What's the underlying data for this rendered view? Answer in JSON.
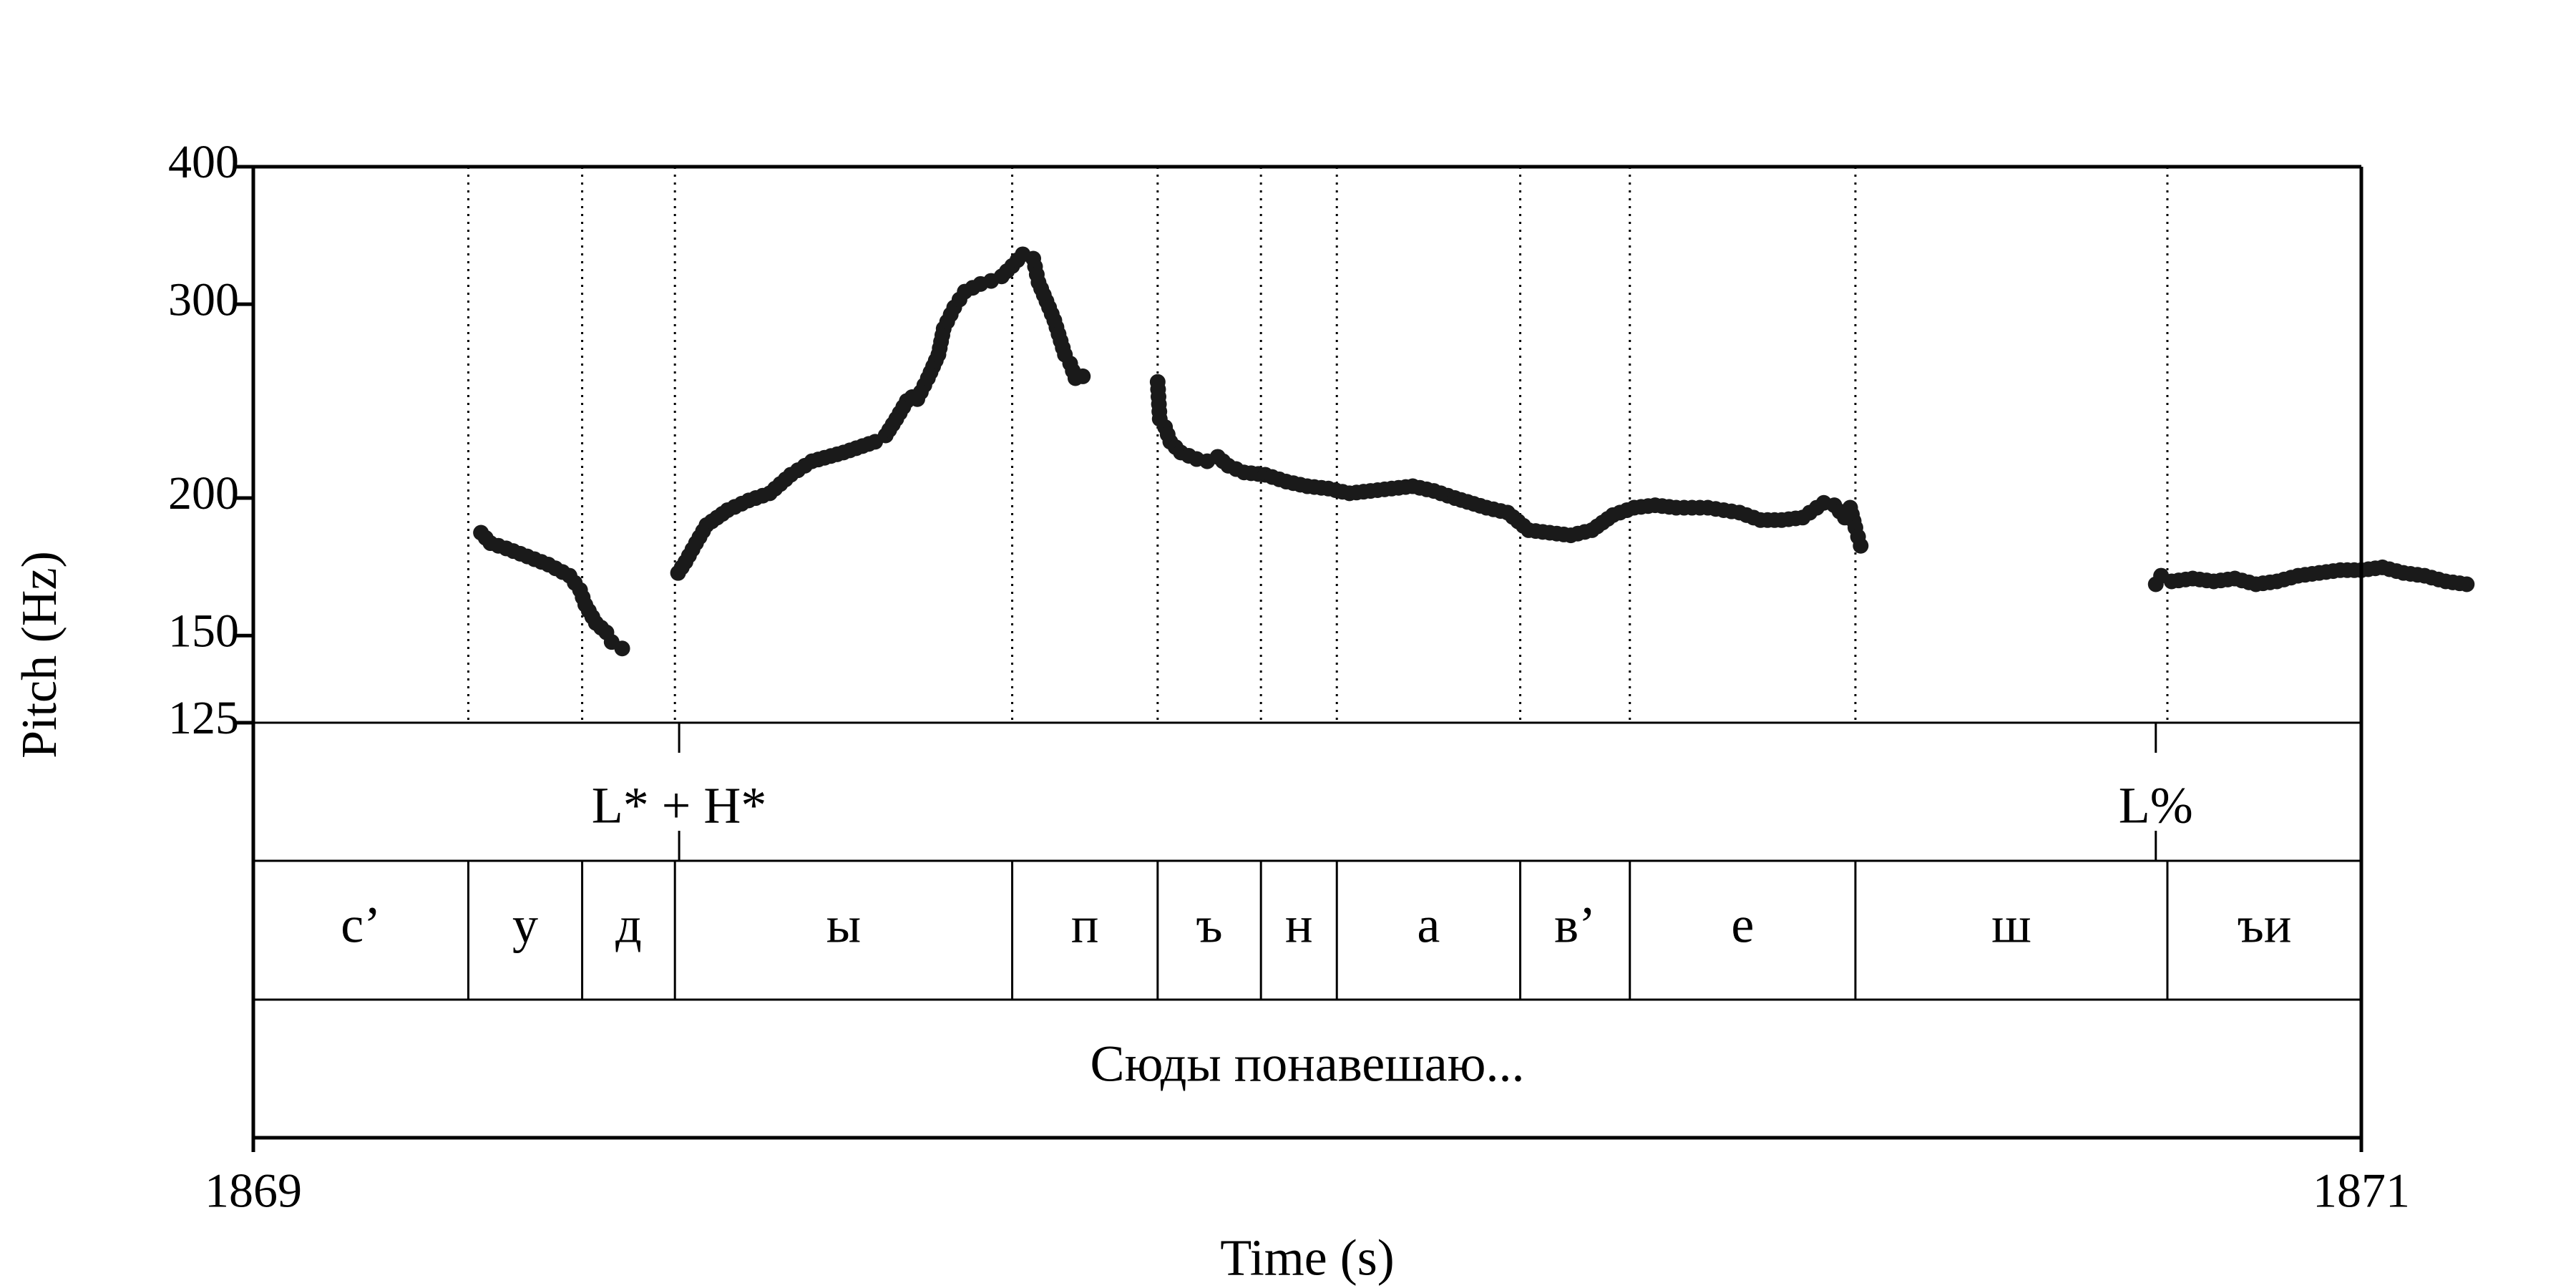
{
  "chart_data": {
    "type": "scatter",
    "xlabel": "Time (s)",
    "ylabel": "Pitch (Hz)",
    "xlim": [
      1869,
      1871
    ],
    "ylim": [
      125,
      400
    ],
    "y_scale": "log",
    "x_ticks": [
      "1869",
      "1871"
    ],
    "y_ticks": [
      400,
      300,
      200,
      150,
      125
    ],
    "grid": false,
    "marker_color": "#1a1a1a",
    "pitch_segments": [
      [
        [
          1869.216,
          186
        ],
        [
          1869.225,
          182
        ],
        [
          1869.24,
          180
        ],
        [
          1869.26,
          177
        ],
        [
          1869.28,
          174
        ],
        [
          1869.3,
          170
        ],
        [
          1869.31,
          165
        ],
        [
          1869.315,
          160
        ],
        [
          1869.325,
          154
        ],
        [
          1869.335,
          151
        ],
        [
          1869.34,
          148
        ],
        [
          1869.35,
          146
        ]
      ],
      [
        [
          1869.403,
          171
        ],
        [
          1869.41,
          175
        ],
        [
          1869.42,
          182
        ],
        [
          1869.43,
          189
        ],
        [
          1869.45,
          195
        ],
        [
          1869.47,
          199
        ],
        [
          1869.49,
          202
        ],
        [
          1869.51,
          210
        ],
        [
          1869.53,
          216
        ],
        [
          1869.56,
          220
        ],
        [
          1869.59,
          225
        ],
        [
          1869.6,
          228
        ],
        [
          1869.61,
          236
        ],
        [
          1869.62,
          245
        ],
        [
          1869.625,
          247
        ],
        [
          1869.63,
          246
        ],
        [
          1869.64,
          257
        ],
        [
          1869.65,
          270
        ],
        [
          1869.655,
          285
        ],
        [
          1869.665,
          298
        ],
        [
          1869.675,
          308
        ],
        [
          1869.69,
          313
        ],
        [
          1869.7,
          315
        ],
        [
          1869.71,
          318
        ],
        [
          1869.72,
          325
        ],
        [
          1869.73,
          333
        ],
        [
          1869.74,
          330
        ],
        [
          1869.745,
          314
        ],
        [
          1869.755,
          298
        ],
        [
          1869.76,
          290
        ],
        [
          1869.77,
          270
        ],
        [
          1869.775,
          265
        ],
        [
          1869.78,
          257
        ],
        [
          1869.787,
          258
        ]
      ],
      [
        [
          1869.858,
          255
        ],
        [
          1869.86,
          236
        ],
        [
          1869.865,
          232
        ],
        [
          1869.87,
          225
        ],
        [
          1869.88,
          220
        ],
        [
          1869.895,
          217
        ],
        [
          1869.905,
          216
        ],
        [
          1869.915,
          218
        ],
        [
          1869.925,
          214
        ],
        [
          1869.94,
          211
        ],
        [
          1869.96,
          210
        ],
        [
          1869.98,
          207
        ],
        [
          1870.0,
          205
        ],
        [
          1870.02,
          204
        ],
        [
          1870.04,
          202
        ],
        [
          1870.06,
          203
        ],
        [
          1870.08,
          204
        ],
        [
          1870.1,
          205
        ],
        [
          1870.12,
          203
        ],
        [
          1870.14,
          200
        ],
        [
          1870.17,
          196
        ],
        [
          1870.19,
          194
        ],
        [
          1870.21,
          187
        ],
        [
          1870.23,
          186
        ],
        [
          1870.25,
          185
        ],
        [
          1870.27,
          187
        ],
        [
          1870.29,
          193
        ],
        [
          1870.31,
          196
        ],
        [
          1870.33,
          197
        ],
        [
          1870.35,
          196
        ],
        [
          1870.38,
          196
        ],
        [
          1870.41,
          194
        ],
        [
          1870.43,
          191
        ],
        [
          1870.45,
          191
        ],
        [
          1870.47,
          192
        ],
        [
          1870.49,
          198
        ],
        [
          1870.5,
          197
        ],
        [
          1870.51,
          192
        ],
        [
          1870.515,
          196
        ],
        [
          1870.52,
          188
        ],
        [
          1870.525,
          181
        ]
      ],
      [
        [
          1870.805,
          167
        ],
        [
          1870.81,
          170
        ],
        [
          1870.82,
          168
        ],
        [
          1870.84,
          169
        ],
        [
          1870.86,
          168
        ],
        [
          1870.88,
          169
        ],
        [
          1870.9,
          167
        ],
        [
          1870.92,
          168
        ],
        [
          1870.94,
          170
        ],
        [
          1870.96,
          171
        ],
        [
          1870.98,
          172
        ],
        [
          1871.0,
          172
        ],
        [
          1871.02,
          173
        ],
        [
          1871.04,
          171
        ],
        [
          1871.06,
          170
        ],
        [
          1871.08,
          168
        ],
        [
          1871.1,
          167
        ]
      ]
    ],
    "tone_tier": {
      "boundaries": [
        1869.404,
        1870.805
      ],
      "labels": [
        {
          "t": 1869.404,
          "text": "L* + H*"
        },
        {
          "t": 1870.805,
          "text": "L%"
        }
      ]
    },
    "segment_tier": {
      "boundaries": [
        1869.0,
        1869.204,
        1869.312,
        1869.4,
        1869.72,
        1869.858,
        1869.956,
        1870.028,
        1870.202,
        1870.306,
        1870.52,
        1870.816,
        1871.0
      ],
      "labels": [
        "с’",
        "у",
        "д",
        "ы",
        "п",
        "ъ",
        "н",
        "а",
        "в’",
        "е",
        "ш",
        "ъи"
      ]
    },
    "word_tier": {
      "boundaries": [
        1869.0,
        1871.0
      ],
      "labels": [
        "Сюды понавешаю..."
      ]
    }
  }
}
